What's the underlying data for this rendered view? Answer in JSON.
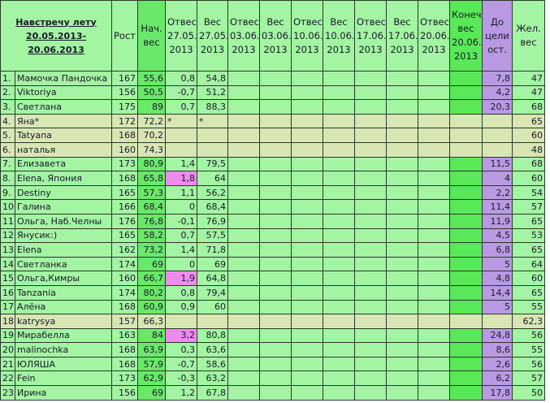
{
  "header": {
    "title_line1": "Навстречу лету",
    "title_line2": "20.05.2013-20.06.2013",
    "columns": [
      "Рост",
      "Нач. вес",
      "Отвес 27.05. 2013",
      "Вес 27.05. 2013",
      "Отвес 03.06. 2013",
      "Вес 03.06. 2013",
      "Отвес 10.06. 2013",
      "Вес 10.06. 2013",
      "Отвес 17.06. 2013",
      "Вес 17.06. 2013",
      "Отвес 20.06. 2013",
      "Конеч. вес 20.06. 2013",
      "До цели ост.",
      "Жел. вес"
    ]
  },
  "colors": {
    "row": "#a3f4a3",
    "start_weight": "#6ae86a",
    "final_weight": "#58e858",
    "goal_left": "#b899e2",
    "inactive": "#d8e6b4",
    "highlight": "#ee8cee"
  },
  "rows": [
    {
      "n": "1.",
      "name": "Мамочка Пандочка",
      "h": "167",
      "start": "55,6",
      "o1": "0,8",
      "w1": "54,8",
      "goal": "7,8",
      "want": "47"
    },
    {
      "n": "2.",
      "name": "Viktoriya",
      "h": "156",
      "start": "50,5",
      "o1": "-0,7",
      "w1": "51,2",
      "goal": "4,2",
      "want": "47"
    },
    {
      "n": "3.",
      "name": "Светлана",
      "h": "175",
      "start": "89",
      "o1": "0,7",
      "w1": "88,3",
      "goal": "20,3",
      "want": "68"
    },
    {
      "n": "4.",
      "name": "Яна*",
      "h": "172",
      "start": "72,2",
      "o1": "*",
      "w1": "*",
      "goal": "",
      "want": "65",
      "inactive": true
    },
    {
      "n": "5.",
      "name": "Tatyana",
      "h": "168",
      "start": "70,2",
      "o1": "",
      "w1": "",
      "goal": "",
      "want": "60",
      "inactive": true
    },
    {
      "n": "6.",
      "name": "наталья",
      "h": "160",
      "start": "74,3",
      "o1": "",
      "w1": "",
      "goal": "",
      "want": "48",
      "inactive": true
    },
    {
      "n": "7.",
      "name": "Елизавета",
      "h": "173",
      "start": "80,9",
      "o1": "1,4",
      "w1": "79,5",
      "goal": "11,5",
      "want": "68"
    },
    {
      "n": "8.",
      "name": "Elena, Япония",
      "h": "168",
      "start": "65,8",
      "o1": "1,8",
      "w1": "64",
      "goal": "4",
      "want": "60",
      "pink": true
    },
    {
      "n": "9.",
      "name": "Destiny",
      "h": "165",
      "start": "57,3",
      "o1": "1,1",
      "w1": "56,2",
      "goal": "2,2",
      "want": "54"
    },
    {
      "n": "10.",
      "name": "Галина",
      "h": "166",
      "start": "68,4",
      "o1": "0",
      "w1": "68,4",
      "goal": "11,4",
      "want": "57"
    },
    {
      "n": "11.",
      "name": "Ольга, Наб.Челны",
      "h": "176",
      "start": "76,8",
      "o1": "-0,1",
      "w1": "76,9",
      "goal": "11,9",
      "want": "65"
    },
    {
      "n": "12.",
      "name": "Янусик:)",
      "h": "165",
      "start": "58,2",
      "o1": "0,7",
      "w1": "57,5",
      "goal": "4,5",
      "want": "53"
    },
    {
      "n": "13.",
      "name": "Elena",
      "h": "162",
      "start": "73,2",
      "o1": "1,4",
      "w1": "71,8",
      "goal": "6,8",
      "want": "65"
    },
    {
      "n": "14.",
      "name": "Светланка",
      "h": "174",
      "start": "69",
      "o1": "0",
      "w1": "69",
      "goal": "5",
      "want": "64"
    },
    {
      "n": "15.",
      "name": "Ольга,Кимры",
      "h": "160",
      "start": "66,7",
      "o1": "1,9",
      "w1": "64,8",
      "goal": "4,8",
      "want": "60",
      "pink": true
    },
    {
      "n": "16.",
      "name": "Tanzania",
      "h": "174",
      "start": "80,2",
      "o1": "0,8",
      "w1": "79,4",
      "goal": "14,4",
      "want": "65"
    },
    {
      "n": "17.",
      "name": "Алёна",
      "h": "168",
      "start": "60,9",
      "o1": "0,9",
      "w1": "60",
      "goal": "5",
      "want": "55"
    },
    {
      "n": "18.",
      "name": "katrysya",
      "h": "157",
      "start": "66,3",
      "o1": "",
      "w1": "",
      "goal": "",
      "want": "62,3",
      "inactive": true
    },
    {
      "n": "19.",
      "name": "Мирабелла",
      "h": "163",
      "start": "84",
      "o1": "3,2",
      "w1": "80,8",
      "goal": "24,8",
      "want": "56",
      "pink": true
    },
    {
      "n": "20.",
      "name": "malinochka",
      "h": "168",
      "start": "63,9",
      "o1": "0,3",
      "w1": "63,6",
      "goal": "8,6",
      "want": "55"
    },
    {
      "n": "21.",
      "name": "ЮЛЯША",
      "h": "168",
      "start": "57,9",
      "o1": "-0,7",
      "w1": "58,6",
      "goal": "2,6",
      "want": "56"
    },
    {
      "n": "22.",
      "name": "Fein",
      "h": "173",
      "start": "62,9",
      "o1": "-0,3",
      "w1": "63,2",
      "goal": "6,2",
      "want": "57"
    },
    {
      "n": "23.",
      "name": "Ирина",
      "h": "156",
      "start": "69",
      "o1": "1,2",
      "w1": "67,8",
      "goal": "17,8",
      "want": "50"
    }
  ]
}
